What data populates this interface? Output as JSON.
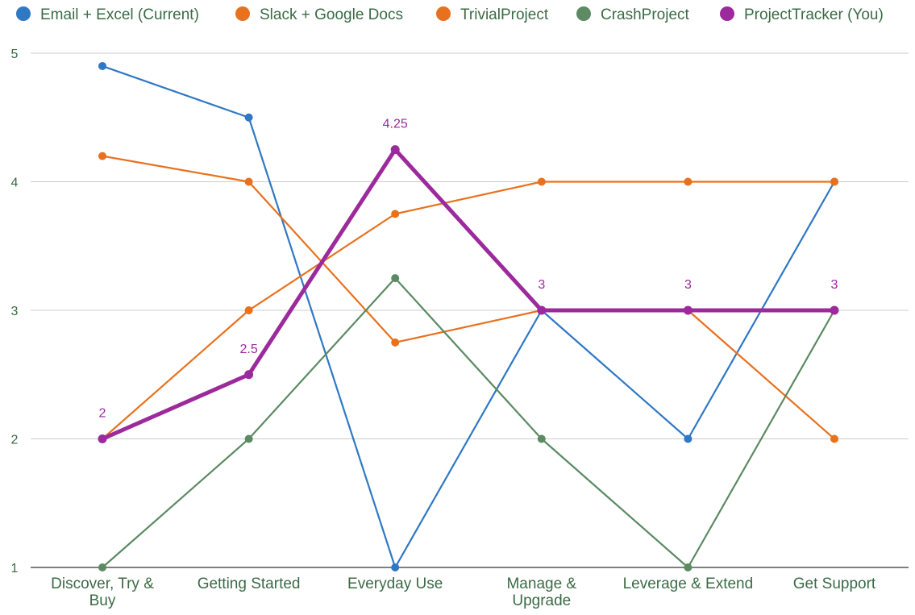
{
  "chart_data": {
    "type": "line",
    "title": "",
    "xlabel": "",
    "ylabel": "",
    "categories": [
      [
        "Discover, Try &",
        "Buy"
      ],
      [
        "Getting Started"
      ],
      [
        "Everyday Use"
      ],
      [
        "Manage &",
        "Upgrade"
      ],
      [
        "Leverage & Extend"
      ],
      [
        "Get Support"
      ]
    ],
    "ylim": [
      1,
      5
    ],
    "yticks": [
      "1",
      "2",
      "3",
      "4",
      "5"
    ],
    "grid": true,
    "legend_position": "top",
    "series": [
      {
        "name": "Email + Excel (Current)",
        "color": "#2f78c4",
        "values": [
          4.9,
          4.5,
          1,
          3,
          2,
          4
        ],
        "emphasis": false
      },
      {
        "name": "Slack + Google Docs",
        "color": "#e8711e",
        "values": [
          4.2,
          4,
          2.75,
          3,
          3,
          2
        ],
        "emphasis": false
      },
      {
        "name": "TrivialProject",
        "color": "#e8711e",
        "values": [
          2,
          3,
          3.75,
          4,
          4,
          4
        ],
        "emphasis": false
      },
      {
        "name": "CrashProject",
        "color": "#5b8a63",
        "values": [
          1,
          2,
          3.25,
          2,
          1,
          3
        ],
        "emphasis": false
      },
      {
        "name": "ProjectTracker (You)",
        "color": "#9c2a9c",
        "values": [
          2,
          2.5,
          4.25,
          3,
          3,
          3
        ],
        "emphasis": true,
        "data_labels": [
          "2",
          "2.5",
          "4.25",
          "3",
          "3",
          "3"
        ]
      }
    ]
  }
}
